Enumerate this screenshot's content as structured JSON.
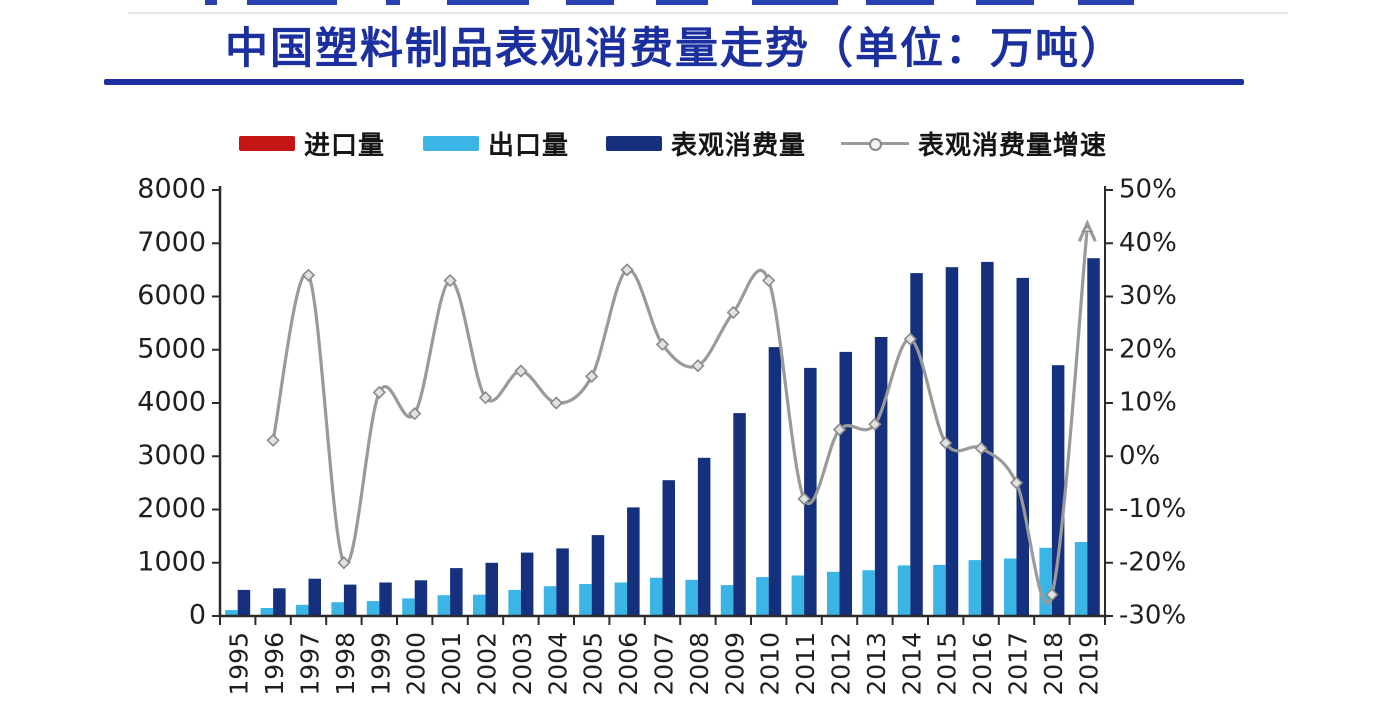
{
  "title": {
    "text": "中国塑料制品表观消费量走势（单位：万吨）",
    "color": "#1b2f9e"
  },
  "divider_color": "#1b2f9e",
  "legend": {
    "items": [
      {
        "label": "进口量",
        "swatch": "bar",
        "color": "#c41414"
      },
      {
        "label": "出口量",
        "swatch": "bar",
        "color": "#3ab5e6"
      },
      {
        "label": "表观消费量",
        "swatch": "bar",
        "color": "#15307d"
      },
      {
        "label": "表观消费量增速",
        "swatch": "line",
        "color": "#9a9a9a"
      }
    ]
  },
  "chart_data": {
    "type": "bar+line combo",
    "title": "中国塑料制品表观消费量走势（单位：万吨）",
    "categories": [
      "1995",
      "1996",
      "1997",
      "1998",
      "1999",
      "2000",
      "2001",
      "2002",
      "2003",
      "2004",
      "2005",
      "2006",
      "2007",
      "2008",
      "2009",
      "2010",
      "2011",
      "2012",
      "2013",
      "2014",
      "2015",
      "2016",
      "2017",
      "2018",
      "2019"
    ],
    "series": [
      {
        "name": "进口量",
        "type": "bar",
        "axis": "left",
        "color": "#c41414",
        "values": [],
        "note": "legend entry present but bars too small to be visible at this axis scale"
      },
      {
        "name": "出口量",
        "type": "bar",
        "axis": "left",
        "color": "#3ab5e6",
        "values": [
          110,
          150,
          210,
          260,
          280,
          330,
          390,
          400,
          490,
          560,
          600,
          630,
          720,
          680,
          580,
          730,
          760,
          830,
          860,
          950,
          960,
          1050,
          1080,
          1280,
          1390
        ]
      },
      {
        "name": "表观消费量",
        "type": "bar",
        "axis": "left",
        "color": "#15307d",
        "values": [
          490,
          520,
          700,
          590,
          630,
          670,
          900,
          1000,
          1190,
          1270,
          1520,
          2040,
          2550,
          2970,
          3810,
          5050,
          4660,
          4960,
          5240,
          6440,
          6550,
          6650,
          6350,
          4710,
          6720
        ]
      },
      {
        "name": "表观消费量增速",
        "type": "line",
        "axis": "right",
        "unit": "%",
        "color": "#9a9a9a",
        "marker": "diamond",
        "end_arrow": true,
        "values": [
          null,
          3,
          34,
          -20,
          12,
          8,
          33,
          11,
          16,
          10,
          15,
          35,
          21,
          17,
          27,
          33,
          -8,
          5,
          6,
          22,
          2.5,
          1.5,
          -5,
          -26,
          43
        ]
      }
    ],
    "left_axis": {
      "min": 0,
      "max": 8000,
      "step": 1000,
      "tick_labels": [
        "0",
        "1000",
        "2000",
        "3000",
        "4000",
        "5000",
        "6000",
        "7000",
        "8000"
      ]
    },
    "right_axis": {
      "min": -30,
      "max": 50,
      "step": 10,
      "tick_labels": [
        "-30%",
        "-20%",
        "-10%",
        "0%",
        "10%",
        "20%",
        "30%",
        "40%",
        "50%"
      ]
    },
    "grid": false,
    "legend_position": "top",
    "label_color": "#1f1f1f",
    "axis_color": "#2b2b2b"
  }
}
